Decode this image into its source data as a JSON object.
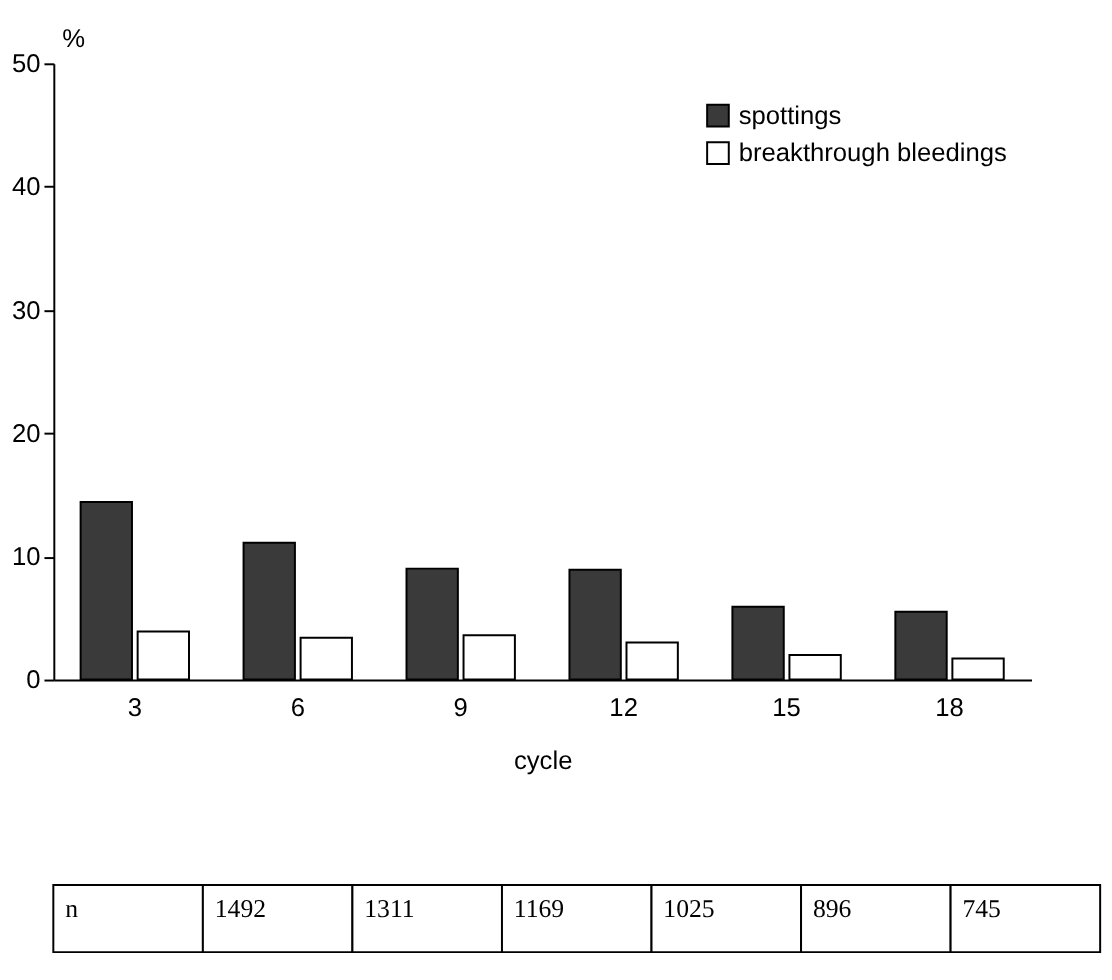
{
  "chart_data": {
    "type": "bar",
    "xlabel": "cycle",
    "ylabel": "%",
    "categories": [
      "3",
      "6",
      "9",
      "12",
      "15",
      "18"
    ],
    "series": [
      {
        "name": "spottings",
        "color": "#3a3a3a",
        "values": [
          14.4,
          11.1,
          9.0,
          8.9,
          5.9,
          5.5
        ]
      },
      {
        "name": "breakthrough bleedings",
        "color": "#ffffff",
        "values": [
          3.9,
          3.4,
          3.6,
          3.0,
          2.0,
          1.7
        ]
      }
    ],
    "ylim": [
      0,
      50
    ],
    "yticks": [
      0,
      10,
      20,
      30,
      40,
      50
    ],
    "grid": false,
    "legend": "top right",
    "annotations": [
      "n",
      "1492",
      "1311",
      "1169",
      "1025",
      "896",
      "745"
    ]
  }
}
